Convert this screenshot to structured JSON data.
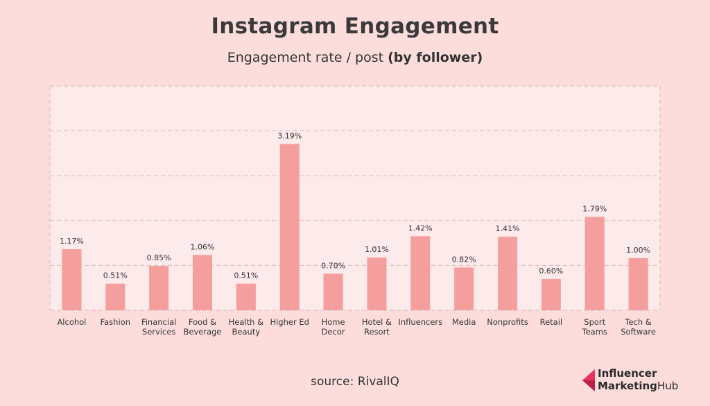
{
  "header": {
    "title": "Instagram Engagement",
    "subtitle_regular": "Engagement rate / post ",
    "subtitle_bold": "(by follower)"
  },
  "footer": {
    "source": "source: RivalIQ"
  },
  "logo": {
    "line1": "Influencer",
    "line2_bold": "Marketing",
    "line2_regular": "Hub"
  },
  "colors": {
    "bar": "#f49e9e",
    "plot_bg": "#fdeaea",
    "background": "#fddcdc",
    "grid": "#d9b9b9",
    "logo_accent": "#e8335c"
  },
  "chart_data": {
    "type": "bar",
    "title": "Instagram Engagement",
    "subtitle": "Engagement rate / post (by follower)",
    "categories": [
      [
        "Alcohol"
      ],
      [
        "Fashion"
      ],
      [
        "Financial",
        "Services"
      ],
      [
        "Food &",
        "Beverage"
      ],
      [
        "Health &",
        "Beauty"
      ],
      [
        "Higher Ed"
      ],
      [
        "Home",
        "Decor"
      ],
      [
        "Hotel &",
        "Resort"
      ],
      [
        "Influencers"
      ],
      [
        "Media"
      ],
      [
        "Nonprofits"
      ],
      [
        "Retail"
      ],
      [
        "Sport",
        "Teams"
      ],
      [
        "Tech &",
        "Software"
      ]
    ],
    "values": [
      1.17,
      0.51,
      0.85,
      1.06,
      0.51,
      3.19,
      0.7,
      1.01,
      1.42,
      0.82,
      1.41,
      0.6,
      1.79,
      1.0
    ],
    "value_labels": [
      "1.17%",
      "0.51%",
      "0.85%",
      "1.06%",
      "0.51%",
      "3.19%",
      "0.70%",
      "1.01%",
      "1.42%",
      "0.82%",
      "1.41%",
      "0.60%",
      "1.79%",
      "1.00%"
    ],
    "ylim": [
      0,
      4.3
    ],
    "grid": true,
    "legend": "none"
  }
}
